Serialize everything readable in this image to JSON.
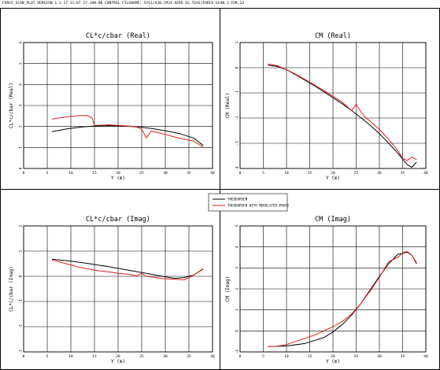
{
  "header": {
    "text": "FORCE_SCAN_PLOT  VERSION  1.1 17:11:07  27-JAN-00   CONTROL FILENAME: SYS1/A38:[M33.AERO.EG.TEAS]FORCE_SCAN_1.FOR;13"
  },
  "legend": {
    "entries": [
      "THEODORSEN",
      "THEODORSEN WITH MODULATED PHASE"
    ],
    "colors": [
      "#000000",
      "#e0201b"
    ]
  },
  "chart_data": [
    {
      "type": "line",
      "title": "CL*c/cbar (Real)",
      "xlabel": "Y (m)",
      "ylabel": "CL*c/cbar (Real)",
      "xlim": [
        0,
        40
      ],
      "ylim": [
        0,
        6
      ],
      "xticks": [
        "0",
        "5",
        "10",
        "15",
        "20",
        "25",
        "30",
        "35",
        "40"
      ],
      "yticks": [
        "0",
        "1",
        "2",
        "3",
        "4",
        "5",
        "6"
      ],
      "series": [
        {
          "name": "THEODORSEN",
          "color": "#000000",
          "x": [
            6,
            9,
            12,
            15,
            18,
            21,
            24,
            27,
            30,
            33,
            36,
            38
          ],
          "y": [
            1.75,
            1.88,
            1.97,
            2.02,
            2.04,
            2.03,
            1.99,
            1.91,
            1.8,
            1.66,
            1.45,
            1.1
          ]
        },
        {
          "name": "THEODORSEN WITH MODULATED PHASE",
          "color": "#e0201b",
          "x": [
            6,
            8,
            10,
            12,
            13.5,
            14.5,
            15,
            16,
            18,
            20,
            22,
            24,
            25,
            26,
            27,
            28,
            30,
            32,
            34,
            36,
            38
          ],
          "y": [
            2.35,
            2.42,
            2.48,
            2.52,
            2.52,
            2.4,
            2.06,
            2.05,
            2.08,
            2.05,
            2.02,
            1.97,
            1.87,
            1.45,
            1.78,
            1.74,
            1.62,
            1.5,
            1.4,
            1.3,
            1.02
          ]
        }
      ]
    },
    {
      "type": "line",
      "title": "CM  (Real)",
      "xlabel": "Y (m)",
      "ylabel": "CM (Real)",
      "xlim": [
        0,
        40
      ],
      "ylim": [
        -4,
        1
      ],
      "xticks": [
        "0",
        "5",
        "10",
        "15",
        "20",
        "25",
        "30",
        "35",
        "40"
      ],
      "yticks": [
        "-4",
        "-3",
        "-2",
        "-1",
        "0",
        "1"
      ],
      "series": [
        {
          "name": "THEODORSEN",
          "color": "#000000",
          "x": [
            6,
            8,
            10,
            12,
            14,
            16,
            18,
            20,
            22,
            24,
            26,
            28,
            30,
            32,
            34,
            36,
            37,
            38
          ],
          "y": [
            0.1,
            0.05,
            -0.08,
            -0.28,
            -0.5,
            -0.72,
            -0.95,
            -1.19,
            -1.43,
            -1.7,
            -1.98,
            -2.28,
            -2.62,
            -3.0,
            -3.4,
            -3.85,
            -3.95,
            -3.75
          ]
        },
        {
          "name": "THEODORSEN WITH MODULATED PHASE",
          "color": "#e0201b",
          "x": [
            6,
            8,
            10,
            12,
            14,
            16,
            18,
            20,
            22,
            24,
            25,
            26,
            27,
            28,
            30,
            32,
            34,
            35,
            36,
            37,
            38
          ],
          "y": [
            0.15,
            0.08,
            -0.08,
            -0.26,
            -0.47,
            -0.68,
            -0.9,
            -1.13,
            -1.37,
            -1.7,
            -1.45,
            -1.75,
            -1.98,
            -2.12,
            -2.45,
            -2.85,
            -3.3,
            -3.6,
            -3.68,
            -3.55,
            -3.65
          ]
        }
      ]
    },
    {
      "type": "line",
      "title": "CL*c/cbar  (Imag)",
      "xlabel": "Y (m)",
      "ylabel": "CL*c/cbar (Imag)",
      "xlim": [
        0,
        40
      ],
      "ylim": [
        -3,
        2
      ],
      "xticks": [
        "0",
        "5",
        "10",
        "15",
        "20",
        "25",
        "30",
        "35",
        "40"
      ],
      "yticks": [
        "-3",
        "-2",
        "-1",
        "0",
        "1",
        "2"
      ],
      "series": [
        {
          "name": "THEODORSEN",
          "color": "#000000",
          "x": [
            6,
            10,
            14,
            18,
            22,
            26,
            30,
            32,
            34,
            36,
            38
          ],
          "y": [
            0.68,
            0.6,
            0.5,
            0.38,
            0.25,
            0.12,
            -0.02,
            -0.08,
            -0.05,
            0.05,
            0.28
          ]
        },
        {
          "name": "THEODORSEN WITH MODULATED PHASE",
          "color": "#e0201b",
          "x": [
            6,
            8,
            10,
            12,
            14,
            16,
            18,
            20,
            22,
            24,
            25,
            26,
            28,
            30,
            32,
            34,
            35,
            36,
            38
          ],
          "y": [
            0.65,
            0.55,
            0.45,
            0.35,
            0.28,
            0.22,
            0.18,
            0.12,
            0.08,
            0.02,
            0.12,
            0.0,
            -0.05,
            -0.1,
            -0.12,
            -0.14,
            -0.05,
            0.05,
            0.3
          ]
        }
      ]
    },
    {
      "type": "line",
      "title": "CM  (Imag)",
      "xlabel": "Y (m)",
      "ylabel": "CM (Imag)",
      "xlim": [
        0,
        40
      ],
      "ylim": [
        -1,
        5
      ],
      "xticks": [
        "0",
        "5",
        "10",
        "15",
        "20",
        "25",
        "30",
        "35",
        "40"
      ],
      "yticks": [
        "-1",
        "0",
        "1",
        "2",
        "3",
        "4",
        "5"
      ],
      "series": [
        {
          "name": "THEODORSEN",
          "color": "#000000",
          "x": [
            6,
            10,
            14,
            18,
            20,
            22,
            24,
            26,
            28,
            30,
            32,
            34,
            35,
            36,
            37,
            38
          ],
          "y": [
            -0.75,
            -0.72,
            -0.6,
            -0.32,
            -0.05,
            0.3,
            0.75,
            1.3,
            1.95,
            2.6,
            3.2,
            3.65,
            3.7,
            3.75,
            3.6,
            3.2
          ]
        },
        {
          "name": "THEODORSEN WITH MODULATED PHASE",
          "color": "#e0201b",
          "x": [
            6,
            8,
            10,
            12,
            14,
            16,
            18,
            20,
            22,
            24,
            26,
            28,
            30,
            32,
            34,
            35,
            36,
            37,
            38
          ],
          "y": [
            -0.75,
            -0.73,
            -0.65,
            -0.5,
            -0.35,
            -0.2,
            0.0,
            0.2,
            0.45,
            0.8,
            1.3,
            1.9,
            2.55,
            3.3,
            3.5,
            3.72,
            3.78,
            3.6,
            3.25
          ]
        }
      ]
    }
  ]
}
